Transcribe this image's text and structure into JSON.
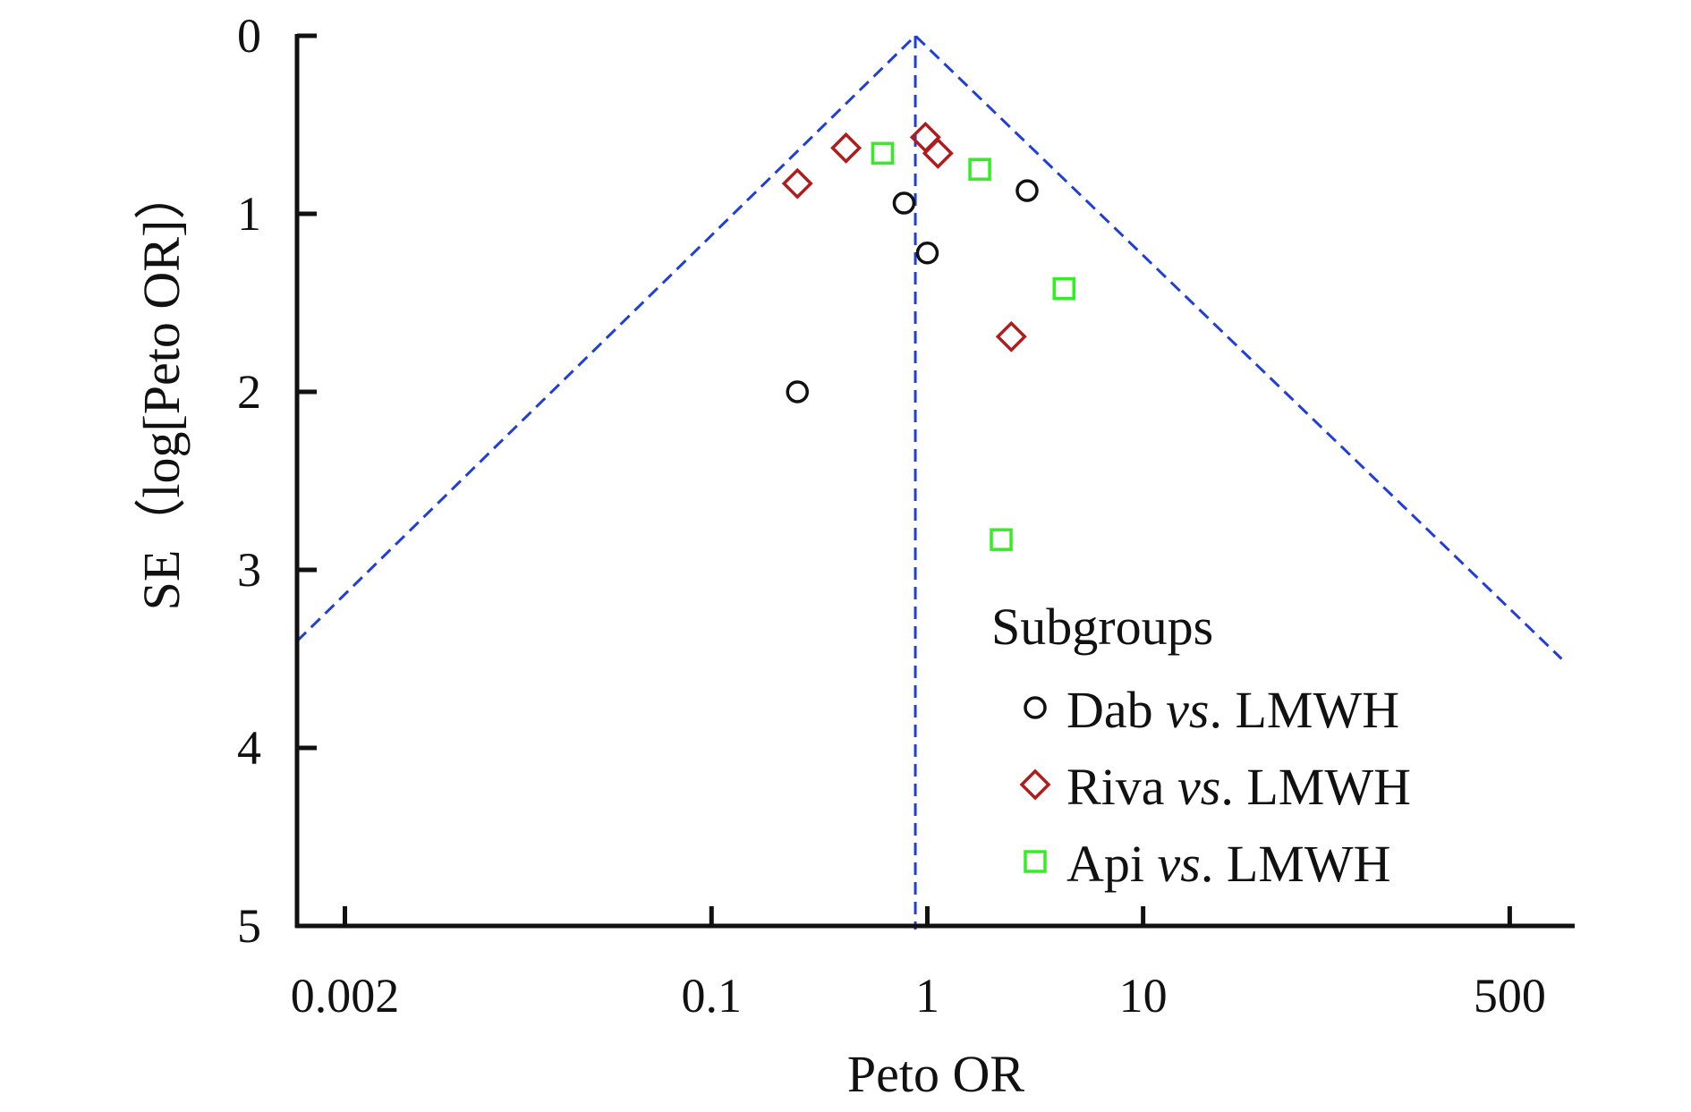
{
  "chart_data": {
    "type": "scatter",
    "title": "",
    "xlabel": "Peto OR",
    "ylabel": "SE（log[Peto OR]）",
    "x_scale": "log",
    "y_inverted": true,
    "xlim": [
      0.0012,
      1000
    ],
    "ylim": [
      0,
      5
    ],
    "x_ticks": [
      0.002,
      0.1,
      1,
      10,
      500
    ],
    "x_tick_labels": [
      "0.002",
      "0.1",
      "1",
      "10",
      "500"
    ],
    "y_ticks": [
      0,
      1,
      2,
      3,
      4,
      5
    ],
    "y_tick_labels": [
      "0",
      "1",
      "2",
      "3",
      "4",
      "5"
    ],
    "pooled_or": 0.88,
    "funnel_limits": [
      {
        "x": 0.0012,
        "y": 3.4
      },
      {
        "x": 0.88,
        "y": 0
      },
      {
        "x": 870,
        "y": 3.5
      }
    ],
    "legend": {
      "title": "Subgroups",
      "placement": "bottom-right",
      "entries": [
        {
          "prefix": "Dab ",
          "italic": "vs",
          "suffix": ". LMWH",
          "marker": "circle",
          "color": "#111111"
        },
        {
          "prefix": "Riva ",
          "italic": "vs",
          "suffix": ". LMWH",
          "marker": "diamond",
          "color": "#b01c1c"
        },
        {
          "prefix": "Api ",
          "italic": "vs",
          "suffix": ". LMWH",
          "marker": "square",
          "color": "#33ee22"
        }
      ]
    },
    "series": [
      {
        "name": "Dab vs. LMWH",
        "marker": "circle",
        "color": "#111111",
        "points": [
          {
            "x": 0.78,
            "y": 0.94
          },
          {
            "x": 1.0,
            "y": 1.22
          },
          {
            "x": 2.9,
            "y": 0.87
          },
          {
            "x": 0.25,
            "y": 2.0
          }
        ]
      },
      {
        "name": "Riva vs. LMWH",
        "marker": "diamond",
        "color": "#b01c1c",
        "points": [
          {
            "x": 0.25,
            "y": 0.83
          },
          {
            "x": 0.42,
            "y": 0.63
          },
          {
            "x": 0.98,
            "y": 0.57
          },
          {
            "x": 1.12,
            "y": 0.66
          },
          {
            "x": 2.45,
            "y": 1.69
          }
        ]
      },
      {
        "name": "Api vs. LMWH",
        "marker": "square",
        "color": "#33ee22",
        "points": [
          {
            "x": 0.62,
            "y": 0.66
          },
          {
            "x": 1.75,
            "y": 0.75
          },
          {
            "x": 4.3,
            "y": 1.42
          },
          {
            "x": 2.2,
            "y": 2.83
          }
        ]
      }
    ]
  },
  "colors": {
    "axis": "#111111",
    "funnel": "#1f3fd8"
  }
}
